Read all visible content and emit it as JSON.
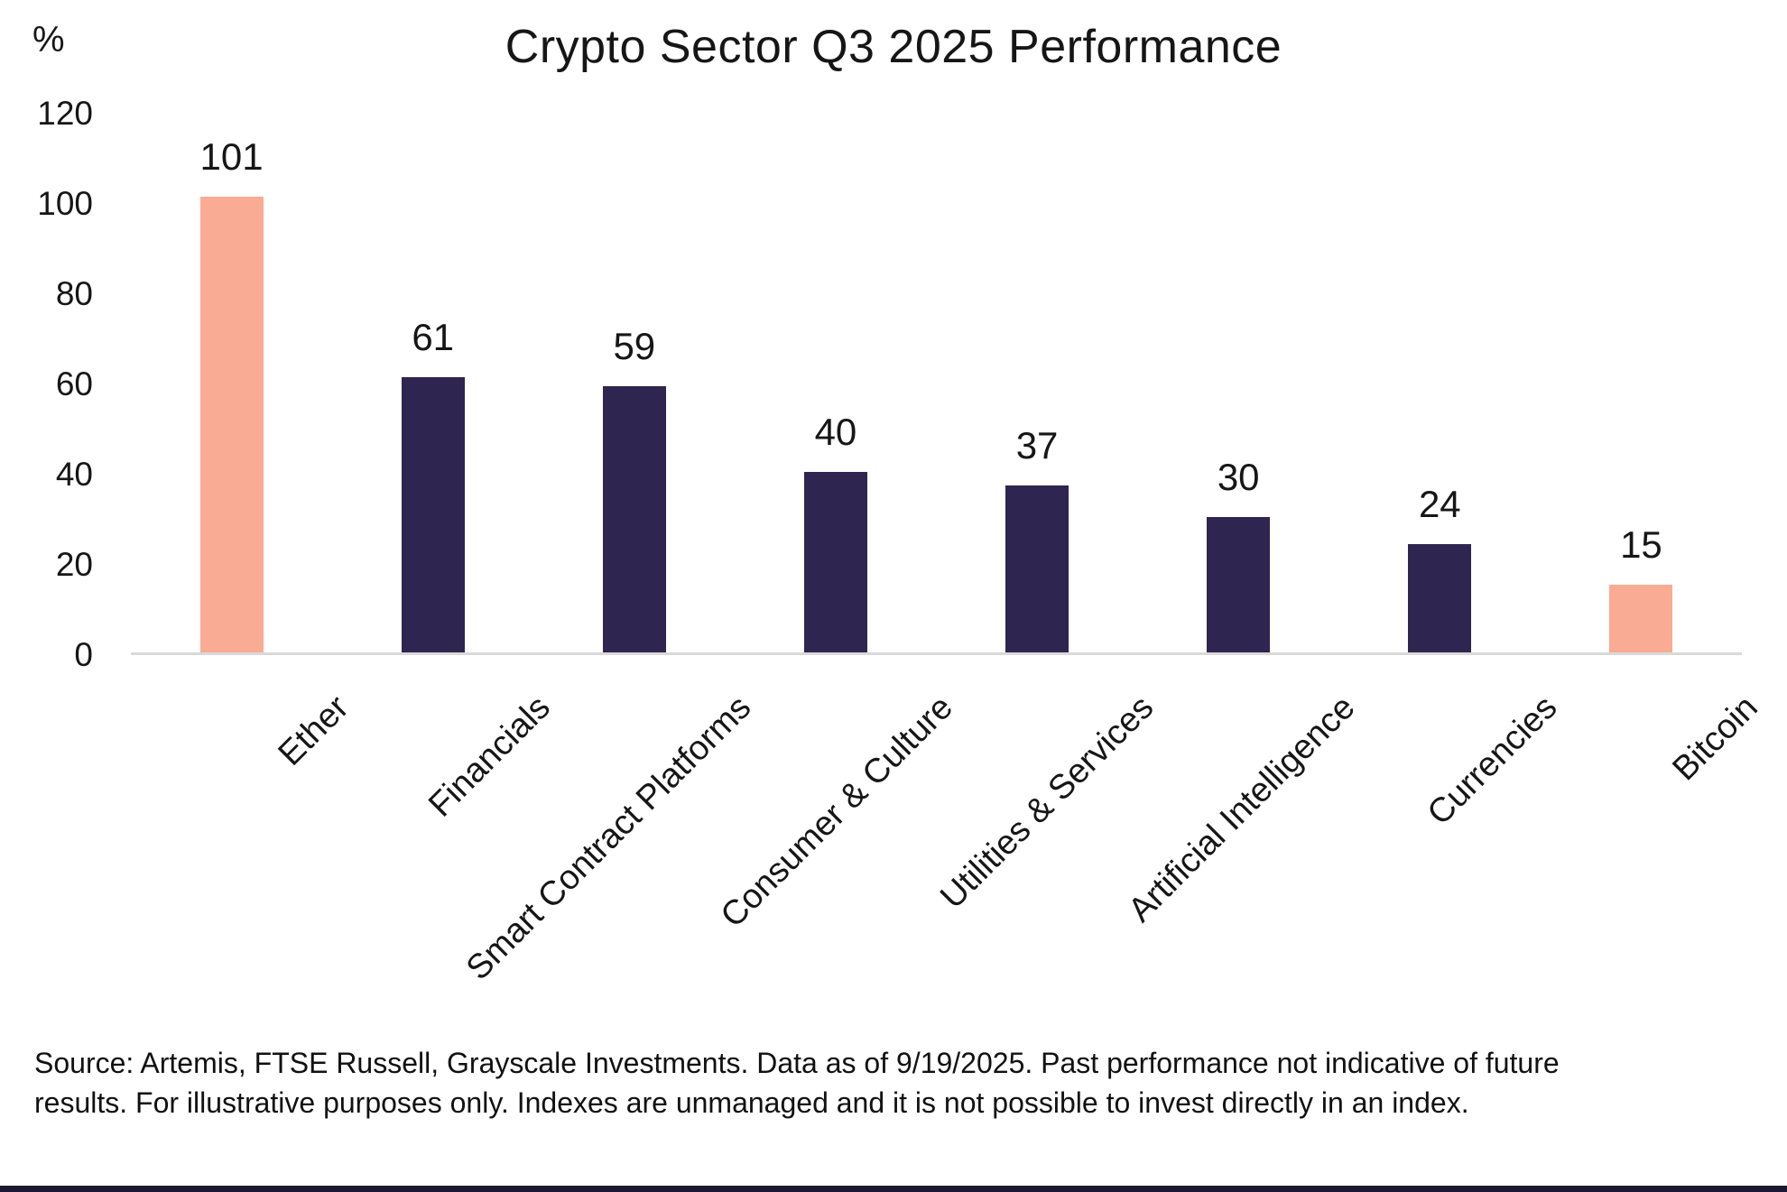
{
  "chart_data": {
    "type": "bar",
    "title": "Crypto Sector Q3 2025 Performance",
    "xlabel": "",
    "ylabel": "%",
    "categories": [
      "Ether",
      "Financials",
      "Smart Contract Platforms",
      "Consumer & Culture",
      "Utilities & Services",
      "Artificial Intelligence",
      "Currencies",
      "Bitcoin"
    ],
    "values": [
      101,
      61,
      59,
      40,
      37,
      30,
      24,
      15
    ],
    "data_labels": [
      "101",
      "61",
      "59",
      "40",
      "37",
      "30",
      "24",
      "15"
    ],
    "bar_colors": [
      "#FAAB93",
      "#2E2550",
      "#2E2550",
      "#2E2550",
      "#2E2550",
      "#2E2550",
      "#2E2550",
      "#FAAB93"
    ],
    "highlight_color": "#FAAB93",
    "base_color": "#2E2550",
    "ylim": [
      0,
      120
    ],
    "yticks": [
      0,
      20,
      40,
      60,
      80,
      100,
      120
    ],
    "grid": false,
    "legend_position": "none",
    "axis_line_color": "#D9D9D9",
    "x_tick_rotation_deg": 45
  },
  "footer": {
    "source_text": "Source: Artemis, FTSE Russell, Grayscale Investments. Data as of 9/19/2025. Past performance not indicative of future results. For illustrative purposes only. Indexes are unmanaged and it is not possible to invest directly in an index.",
    "accent_bar_color": "#1B1830"
  }
}
